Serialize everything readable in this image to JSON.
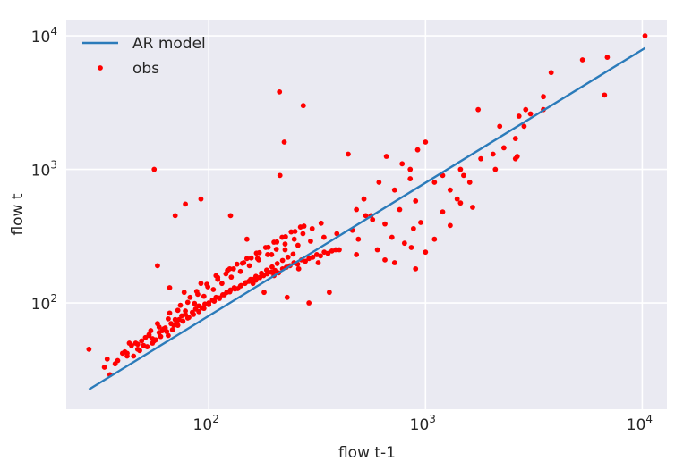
{
  "chart_data": {
    "type": "scatter",
    "xlabel": "flow t-1",
    "ylabel": "flow t",
    "xscale": "log",
    "yscale": "log",
    "xlim": [
      22,
      13000
    ],
    "ylim": [
      16,
      13200
    ],
    "grid": true,
    "legend_position": "top-left",
    "x_ticks": [
      {
        "value": 100,
        "base": "10",
        "exp": "2"
      },
      {
        "value": 1000,
        "base": "10",
        "exp": "3"
      },
      {
        "value": 10000,
        "base": "10",
        "exp": "4"
      }
    ],
    "y_ticks": [
      {
        "value": 100,
        "base": "10",
        "exp": "2"
      },
      {
        "value": 1000,
        "base": "10",
        "exp": "3"
      },
      {
        "value": 10000,
        "base": "10",
        "exp": "4"
      }
    ],
    "legend": [
      {
        "label": "AR model",
        "kind": "line",
        "color": "#2b7bba"
      },
      {
        "label": "obs",
        "kind": "marker",
        "color": "#ff0000"
      }
    ],
    "series": [
      {
        "name": "AR model",
        "kind": "line",
        "color": "#2b7bba",
        "x": [
          28,
          10300
        ],
        "y": [
          22.5,
          8100
        ]
      },
      {
        "name": "obs",
        "kind": "scatter",
        "color": "#ff0000",
        "x": [
          28,
          33,
          35,
          34,
          37,
          40,
          42,
          44,
          47,
          43,
          49,
          51,
          53,
          55,
          57,
          59,
          61,
          63,
          65,
          67,
          69,
          71,
          73,
          75,
          78,
          81,
          84,
          87,
          90,
          93,
          96,
          100,
          104,
          108,
          112,
          116,
          121,
          126,
          131,
          136,
          141,
          147,
          153,
          159,
          165,
          172,
          179,
          186,
          194,
          202,
          210,
          219,
          228,
          237,
          247,
          257,
          268,
          279,
          290,
          302,
          315,
          328,
          341,
          355,
          370,
          385,
          45,
          48,
          52,
          56,
          60,
          64,
          68,
          72,
          76,
          80,
          85,
          90,
          95,
          100,
          106,
          112,
          118,
          125,
          132,
          140,
          148,
          156,
          165,
          175,
          185,
          196,
          207,
          219,
          232,
          245,
          50,
          55,
          62,
          70,
          78,
          86,
          95,
          105,
          115,
          127,
          140,
          154,
          170,
          187,
          205,
          225,
          248,
          272,
          300,
          330,
          38,
          41,
          46,
          54,
          58,
          66,
          74,
          82,
          88,
          98,
          110,
          122,
          135,
          150,
          166,
          183,
          200,
          218,
          240,
          265,
          42,
          47,
          53,
          59,
          65,
          72,
          80,
          89,
          99,
          110,
          120,
          130,
          143,
          157,
          171,
          188,
          206,
          226,
          250,
          275,
          56,
          58,
          66,
          77,
          92,
          108,
          125,
          145,
          168,
          195,
          225,
          258,
          295,
          340,
          390,
          212,
          223,
          213,
          273,
          78,
          70,
          92,
          126,
          150,
          160,
          180,
          200,
          230,
          260,
          290,
          320,
          360,
          400,
          440,
          480,
          520,
          560,
          610,
          660,
          720,
          780,
          850,
          920,
          1000,
          1100,
          1200,
          1300,
          1450,
          1600,
          1800,
          2050,
          2300,
          2600,
          2850,
          3050,
          3500,
          3800,
          5300,
          6700,
          6900,
          10300,
          2650,
          2600,
          2100,
          1500,
          1400,
          900,
          850,
          760,
          650,
          570,
          530,
          490,
          460,
          480,
          900,
          720,
          650,
          860,
          950,
          1200,
          1650,
          1450,
          1300,
          1100,
          1000,
          880,
          800,
          700,
          600,
          2200,
          2700,
          2900,
          3500,
          1750
        ],
        "y": [
          45,
          33,
          29,
          38,
          35,
          42,
          40,
          48,
          45,
          50,
          52,
          55,
          58,
          50,
          53,
          60,
          62,
          65,
          57,
          70,
          68,
          72,
          75,
          80,
          82,
          78,
          85,
          90,
          95,
          92,
          98,
          100,
          105,
          110,
          108,
          115,
          120,
          125,
          130,
          128,
          135,
          140,
          145,
          150,
          148,
          155,
          160,
          165,
          170,
          175,
          168,
          180,
          185,
          190,
          200,
          195,
          210,
          205,
          215,
          220,
          230,
          225,
          240,
          235,
          245,
          250,
          40,
          44,
          47,
          52,
          56,
          61,
          63,
          68,
          73,
          77,
          82,
          86,
          91,
          97,
          103,
          109,
          115,
          121,
          127,
          134,
          142,
          150,
          158,
          167,
          176,
          186,
          197,
          208,
          220,
          232,
          48,
          54,
          64,
          75,
          87,
          99,
          112,
          126,
          140,
          156,
          172,
          190,
          210,
          230,
          252,
          276,
          300,
          330,
          360,
          395,
          37,
          43,
          50,
          62,
          70,
          84,
          96,
          110,
          122,
          138,
          155,
          175,
          195,
          215,
          236,
          260,
          285,
          310,
          340,
          370,
          42,
          49,
          57,
          66,
          76,
          88,
          101,
          116,
          132,
          150,
          165,
          180,
          198,
          217,
          238,
          261,
          286,
          313,
          343,
          376,
          1000,
          190,
          130,
          120,
          140,
          160,
          180,
          200,
          215,
          230,
          250,
          270,
          290,
          310,
          330,
          3800,
          1600,
          900,
          3000,
          550,
          450,
          600,
          450,
          300,
          140,
          120,
          160,
          110,
          180,
          100,
          200,
          120,
          250,
          1300,
          500,
          600,
          450,
          800,
          1250,
          700,
          1100,
          1000,
          1400,
          1600,
          800,
          900,
          700,
          1000,
          800,
          1200,
          1300,
          1450,
          1700,
          2100,
          2600,
          2800,
          5300,
          6600,
          3600,
          6900,
          10000,
          1250,
          1200,
          1000,
          900,
          600,
          580,
          850,
          500,
          390,
          420,
          450,
          300,
          350,
          230,
          180,
          200,
          210,
          260,
          400,
          480,
          520,
          560,
          380,
          300,
          240,
          360,
          280,
          310,
          250,
          2100,
          2500,
          2800,
          3500,
          2800
        ]
      }
    ]
  }
}
